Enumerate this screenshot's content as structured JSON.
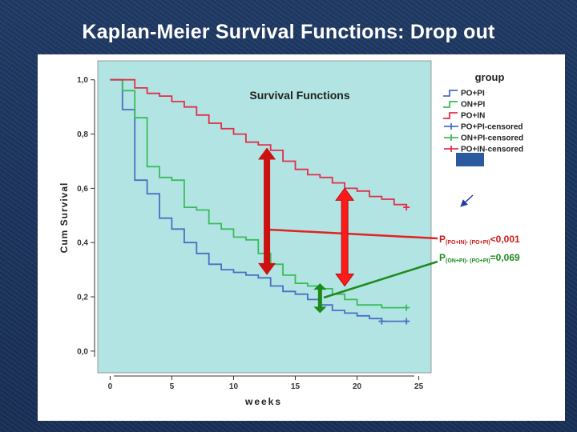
{
  "slide": {
    "title": "Kaplan-Meier Survival Functions: Drop out"
  },
  "chart_data": {
    "type": "line",
    "title": "Survival Functions",
    "xlabel": "weeks",
    "ylabel": "Cum Survival",
    "xlim": [
      -1,
      26
    ],
    "ylim": [
      -0.08,
      1.07
    ],
    "xticks": [
      "0",
      "5",
      "10",
      "15",
      "20",
      "25"
    ],
    "xtick_values": [
      0,
      5,
      10,
      15,
      20,
      25
    ],
    "yticks": [
      "0,0",
      "0,2",
      "0,4",
      "0,6",
      "0,8",
      "1,0"
    ],
    "ytick_values": [
      0,
      0.2,
      0.4,
      0.6,
      0.8,
      1.0
    ],
    "legend": {
      "title": "group",
      "position": "right",
      "entries": [
        "PO+PI",
        "ON+PI",
        "PO+IN",
        "PO+PI-censored",
        "ON+PI-censored",
        "PO+IN-censored"
      ]
    },
    "series": [
      {
        "name": "PO+PI",
        "color": "#4a6fc4",
        "x": [
          0,
          1,
          2,
          3,
          4,
          5,
          6,
          7,
          8,
          9,
          10,
          11,
          12,
          13,
          14,
          15,
          16,
          17,
          18,
          19,
          20,
          21,
          22,
          24
        ],
        "y": [
          1.0,
          0.89,
          0.63,
          0.58,
          0.49,
          0.45,
          0.4,
          0.36,
          0.32,
          0.3,
          0.29,
          0.28,
          0.27,
          0.24,
          0.22,
          0.21,
          0.19,
          0.17,
          0.15,
          0.14,
          0.13,
          0.12,
          0.11,
          0.11
        ],
        "censored_x": [
          22,
          24
        ]
      },
      {
        "name": "ON+PI",
        "color": "#3bbb5c",
        "x": [
          0,
          1,
          2,
          3,
          4,
          5,
          6,
          7,
          8,
          9,
          10,
          11,
          12,
          13,
          14,
          15,
          16,
          17,
          18,
          19,
          20,
          21,
          22,
          24
        ],
        "y": [
          1.0,
          0.96,
          0.86,
          0.68,
          0.64,
          0.63,
          0.53,
          0.52,
          0.47,
          0.45,
          0.42,
          0.41,
          0.36,
          0.32,
          0.28,
          0.25,
          0.24,
          0.23,
          0.21,
          0.19,
          0.17,
          0.17,
          0.16,
          0.16
        ],
        "censored_x": [
          24
        ]
      },
      {
        "name": "PO+IN",
        "color": "#e0304a",
        "x": [
          0,
          1,
          2,
          3,
          4,
          5,
          6,
          7,
          8,
          9,
          10,
          11,
          12,
          13,
          14,
          15,
          16,
          17,
          18,
          19,
          20,
          21,
          22,
          23,
          24
        ],
        "y": [
          1.0,
          1.0,
          0.97,
          0.95,
          0.94,
          0.92,
          0.9,
          0.87,
          0.84,
          0.82,
          0.8,
          0.77,
          0.76,
          0.74,
          0.7,
          0.67,
          0.65,
          0.64,
          0.62,
          0.6,
          0.59,
          0.57,
          0.56,
          0.54,
          0.53
        ],
        "censored_x": [
          24
        ]
      }
    ],
    "annotations": [
      {
        "type": "double-arrow",
        "color": "#cc1111",
        "x": 12.7,
        "y_top": 0.75,
        "y_bottom": 0.28
      },
      {
        "type": "double-arrow",
        "color": "#ff1a1a",
        "x": 19,
        "y_top": 0.6,
        "y_bottom": 0.24
      },
      {
        "type": "double-arrow",
        "color": "#1a8a1a",
        "x": 17,
        "y_top": 0.25,
        "y_bottom": 0.14
      }
    ],
    "p_values": [
      {
        "prefix": "P",
        "subscript": "(PO+IN)- (PO+PI)",
        "value": "<0,001",
        "color": "#cc1a1a"
      },
      {
        "prefix": "P",
        "subscript": "(ON+PI)- (PO+PI)",
        "value": "=0,069",
        "color": "#1f8a1f"
      }
    ]
  }
}
